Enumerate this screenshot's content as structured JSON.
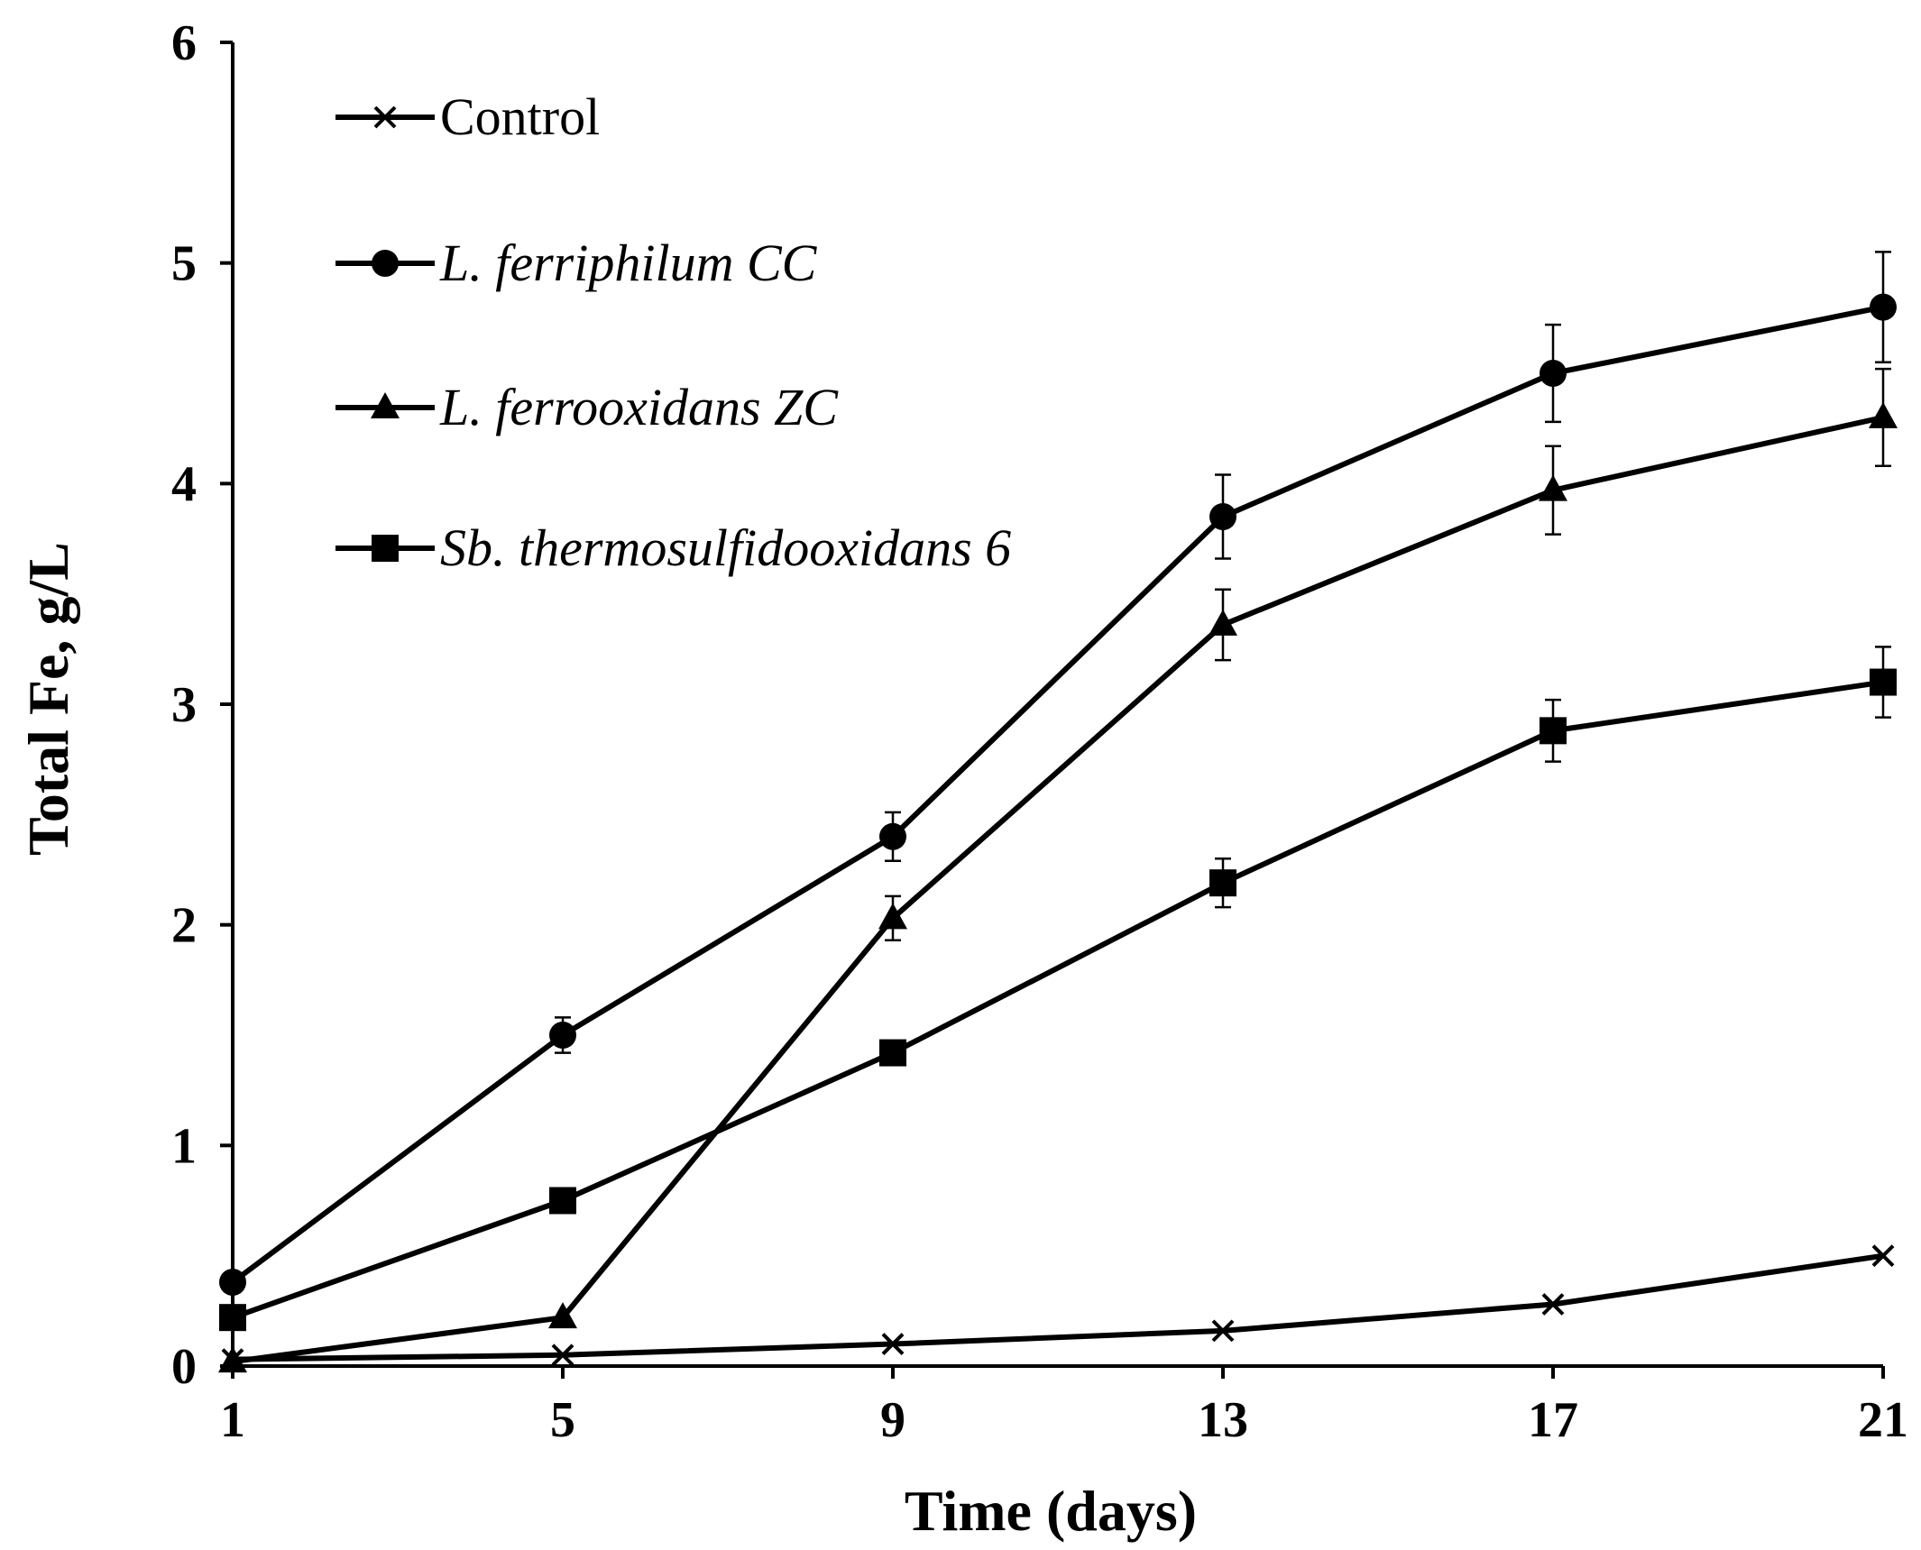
{
  "chart_data": {
    "type": "line",
    "title": "",
    "xlabel": "Time (days)",
    "ylabel": "Total Fe, g/L",
    "x": [
      1,
      5,
      9,
      13,
      17,
      21
    ],
    "xlim": [
      1,
      21
    ],
    "ylim": [
      0,
      6
    ],
    "x_ticks": [
      "1",
      "5",
      "9",
      "13",
      "17",
      "21"
    ],
    "y_ticks": [
      "0",
      "1",
      "2",
      "3",
      "4",
      "5",
      "6"
    ],
    "grid": false,
    "legend_position": "top-left",
    "series": [
      {
        "name": "Control",
        "italic": false,
        "marker": "x",
        "values": [
          0.03,
          0.05,
          0.1,
          0.16,
          0.28,
          0.5
        ],
        "errors": [
          0,
          0,
          0,
          0,
          0,
          0
        ]
      },
      {
        "name": "L. ferriphilum CC",
        "italic": true,
        "marker": "circle",
        "values": [
          0.38,
          1.5,
          2.4,
          3.85,
          4.5,
          4.8
        ],
        "errors": [
          0,
          0.08,
          0.11,
          0.19,
          0.22,
          0.25
        ]
      },
      {
        "name": "L. ferrooxidans ZC",
        "italic": true,
        "marker": "triangle",
        "values": [
          0.02,
          0.22,
          2.03,
          3.36,
          3.97,
          4.3
        ],
        "errors": [
          0,
          0,
          0.1,
          0.16,
          0.2,
          0.22
        ]
      },
      {
        "name": "Sb. thermosulfidooxidans 6",
        "italic": true,
        "marker": "square",
        "values": [
          0.22,
          0.75,
          1.42,
          2.19,
          2.88,
          3.1
        ],
        "errors": [
          0,
          0,
          0,
          0.11,
          0.14,
          0.16
        ]
      }
    ]
  }
}
